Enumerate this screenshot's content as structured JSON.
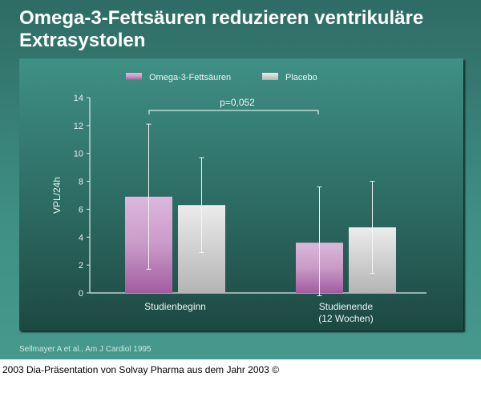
{
  "title": "Omega-3-Fettsäuren reduzieren ventrikuläre Extrasystolen",
  "citation": "Sellmayer A et al., Am J Cardiol 1995",
  "footer": "2003 Dia-Präsentation von Solvay Pharma aus dem Jahr 2003 ©",
  "colors": {
    "omega": "#a25ca0",
    "placebo": "#b4b4b4",
    "background": "#3f8f84"
  },
  "chart_data": {
    "type": "bar",
    "ylabel": "VPL/24h",
    "ylim": [
      0,
      14
    ],
    "yticks": [
      0,
      2,
      4,
      6,
      8,
      10,
      12,
      14
    ],
    "categories": [
      "Studienbeginn",
      "Studienende\n(12 Wochen)"
    ],
    "legend_placement": "top",
    "series": [
      {
        "name": "Omega-3-Fettsäuren",
        "values": [
          6.9,
          3.6
        ],
        "error_low": [
          1.7,
          -0.2
        ],
        "error_high": [
          12.1,
          7.6
        ]
      },
      {
        "name": "Placebo",
        "values": [
          6.3,
          4.7
        ],
        "error_low": [
          2.9,
          1.4
        ],
        "error_high": [
          9.7,
          8.0
        ]
      }
    ],
    "annotation": "p=0,052"
  }
}
